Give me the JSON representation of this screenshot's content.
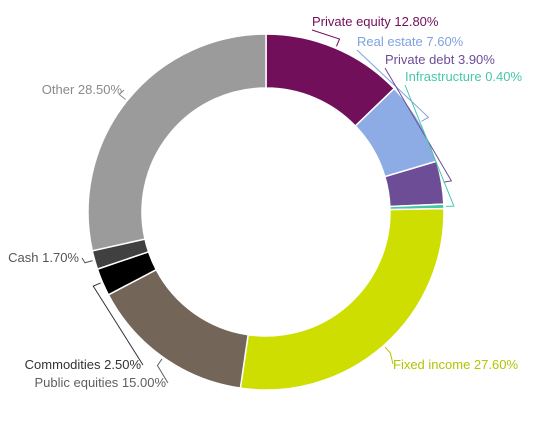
{
  "chart_data": {
    "type": "pie",
    "donut": true,
    "start_angle_deg": 0,
    "direction": "clockwise",
    "legend": "none",
    "slices": [
      {
        "name": "Private equity",
        "label": "Private equity 12.80%",
        "value": 12.8,
        "color": "#720f5a",
        "label_color": "#720f5a"
      },
      {
        "name": "Real estate",
        "label": "Real estate 7.60%",
        "value": 7.6,
        "color": "#8dace5",
        "label_color": "#7fa3df"
      },
      {
        "name": "Private debt",
        "label": "Private debt 3.90%",
        "value": 3.9,
        "color": "#6e4d97",
        "label_color": "#6e4d97"
      },
      {
        "name": "Infrastructure",
        "label": "Infrastructure 0.40%",
        "value": 0.4,
        "color": "#46c8a8",
        "label_color": "#46c8a8"
      },
      {
        "name": "Fixed income",
        "label": "Fixed income 27.60%",
        "value": 27.6,
        "color": "#cdde00",
        "label_color": "#b3c400"
      },
      {
        "name": "Public equities",
        "label": "Public equities 15.00%",
        "value": 15.0,
        "color": "#736659",
        "label_color": "#5f5f5f"
      },
      {
        "name": "Commodities",
        "label": "Commodities 2.50%",
        "value": 2.5,
        "color": "#000000",
        "label_color": "#333333"
      },
      {
        "name": "Cash",
        "label": "Cash 1.70%",
        "value": 1.7,
        "color": "#404040",
        "label_color": "#555555"
      },
      {
        "name": "Other",
        "label": "Other 28.50%",
        "value": 28.5,
        "color": "#9b9b9b",
        "label_color": "#8a8a8a"
      }
    ]
  }
}
